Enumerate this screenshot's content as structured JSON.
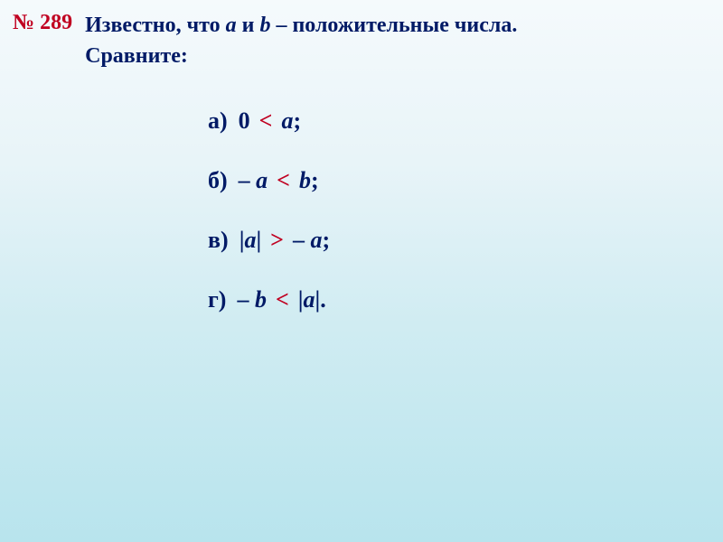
{
  "header": {
    "problem_number": "№ 289",
    "line1_prefix": "Известно, что ",
    "var_a": "a",
    "line1_mid": " и ",
    "var_b": "b",
    "line1_suffix": " – положительные числа.",
    "line2": "Сравните:"
  },
  "items": [
    {
      "marker": "а)",
      "left_parts": [
        {
          "text": "0",
          "italic": false
        }
      ],
      "comparator": "<",
      "right_parts": [
        {
          "text": "a",
          "italic": true
        }
      ],
      "terminator": ";"
    },
    {
      "marker": "б)",
      "left_parts": [
        {
          "text": "– ",
          "italic": false
        },
        {
          "text": "a",
          "italic": true
        }
      ],
      "comparator": "<",
      "right_parts": [
        {
          "text": "b",
          "italic": true
        }
      ],
      "terminator": ";"
    },
    {
      "marker": "в)",
      "left_parts": [
        {
          "text": "|",
          "italic": false
        },
        {
          "text": "a",
          "italic": true
        },
        {
          "text": "|",
          "italic": false
        }
      ],
      "comparator": ">",
      "right_parts": [
        {
          "text": "– ",
          "italic": false
        },
        {
          "text": "a",
          "italic": true
        }
      ],
      "terminator": ";"
    },
    {
      "marker": "г)",
      "left_parts": [
        {
          "text": "– ",
          "italic": false
        },
        {
          "text": "b",
          "italic": true
        }
      ],
      "comparator": "<",
      "right_parts": [
        {
          "text": "|",
          "italic": false
        },
        {
          "text": "a",
          "italic": true
        },
        {
          "text": "|",
          "italic": false
        }
      ],
      "terminator": "."
    }
  ],
  "style": {
    "accent_color": "#c00020",
    "text_color": "#001a66",
    "bg_gradient_top": "#f5fafc",
    "bg_gradient_bottom": "#b8e4ed",
    "header_fontsize": 24,
    "item_fontsize": 26
  }
}
